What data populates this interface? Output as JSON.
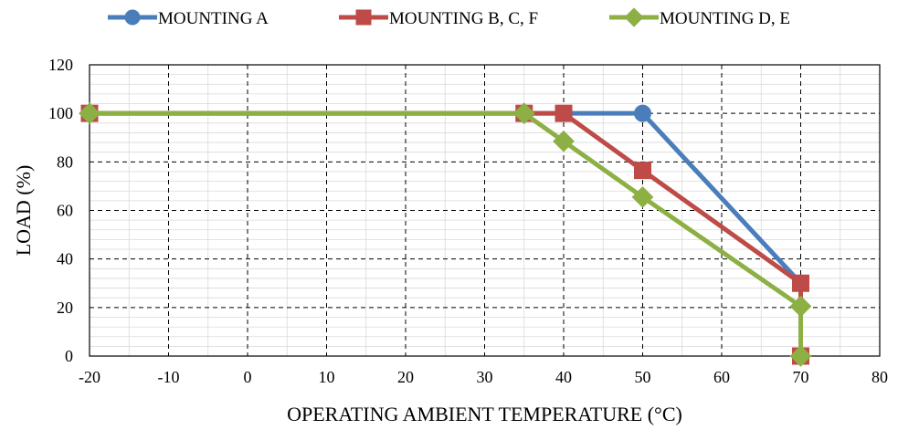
{
  "chart_data": {
    "type": "line",
    "title": "",
    "xlabel": "OPERATING AMBIENT TEMPERATURE (°C)",
    "ylabel": "LOAD (%)",
    "xlim": [
      -20,
      80
    ],
    "ylim": [
      0,
      120
    ],
    "x_ticks": [
      -20,
      -10,
      0,
      10,
      20,
      30,
      40,
      50,
      60,
      70,
      80
    ],
    "y_ticks": [
      0,
      20,
      40,
      60,
      80,
      100,
      120
    ],
    "x_tick_labels": [
      "-20",
      "-10",
      "0",
      "10",
      "20",
      "30",
      "40",
      "50",
      "60",
      "70",
      "80"
    ],
    "y_tick_labels": [
      "0",
      "20",
      "40",
      "60",
      "80",
      "100",
      "120"
    ],
    "grid": {
      "major": "dashed",
      "minor": true
    },
    "legend": {
      "placement": "top"
    },
    "series": [
      {
        "name": "MOUNTING A",
        "color": "#4a7ebb",
        "marker": "circle",
        "x": [
          -20,
          50,
          70
        ],
        "y": [
          100,
          100,
          30
        ]
      },
      {
        "name": "MOUNTING B, C, F",
        "color": "#be4b48",
        "marker": "square",
        "x": [
          -20,
          35,
          40,
          50,
          70,
          70
        ],
        "y": [
          100,
          100,
          100,
          76.5,
          30,
          0
        ]
      },
      {
        "name": "MOUNTING D, E",
        "color": "#8db044",
        "marker": "diamond",
        "x": [
          -20,
          35,
          40,
          50,
          70,
          70
        ],
        "y": [
          100,
          100,
          88.5,
          65.5,
          20.5,
          0
        ]
      }
    ]
  }
}
